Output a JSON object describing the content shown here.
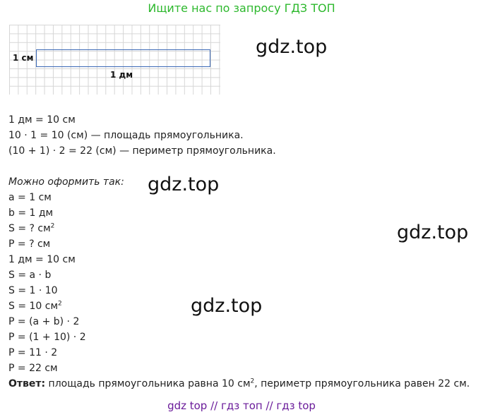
{
  "header": {
    "text": "Ищите нас по запросу ГДЗ ТОП"
  },
  "diagram": {
    "width_label": "1 см",
    "length_label": "1 дм"
  },
  "watermarks": [
    "gdz.top",
    "gdz.top",
    "gdz.top",
    "gdz.top"
  ],
  "lines": [
    "1 дм = 10 см",
    "10 · 1 = 10 (см) — площадь прямоугольника.",
    "(10 + 1) · 2 = 22 (см) — периметр прямоугольника.",
    "Можно оформить так:",
    "a = 1 см",
    "b = 1 дм",
    "S = ? см",
    "2",
    "P = ? см",
    "1 дм = 10 см",
    "S = a · b",
    "S = 1 · 10",
    "S = 10 см",
    "2",
    "P = (a + b) · 2",
    "P = (1 + 10) · 2",
    "P = 11 · 2",
    "P = 22 см"
  ],
  "answer": {
    "label": "Ответ:",
    "text_a": " площадь прямоугольника равна 10 см",
    "sup": "2",
    "text_b": ", периметр прямоугольника равен 22 см."
  },
  "footer": {
    "text": "gdz top  //  гдз топ  //  гдз top"
  }
}
